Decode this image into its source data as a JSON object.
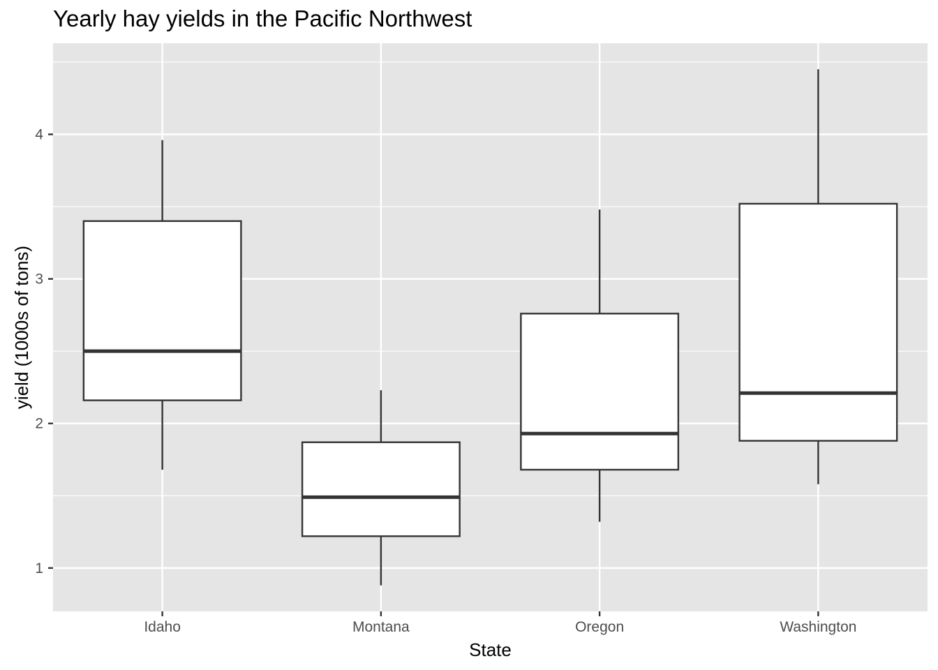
{
  "chart_data": {
    "type": "boxplot",
    "title": "Yearly hay yields in the Pacific Northwest",
    "xlabel": "State",
    "ylabel": "yield (1000s of tons)",
    "categories": [
      "Idaho",
      "Montana",
      "Oregon",
      "Washington"
    ],
    "boxes": [
      {
        "name": "Idaho",
        "lower_whisker": 1.68,
        "q1": 2.16,
        "median": 2.5,
        "q3": 3.4,
        "upper_whisker": 3.96
      },
      {
        "name": "Montana",
        "lower_whisker": 0.88,
        "q1": 1.22,
        "median": 1.49,
        "q3": 1.87,
        "upper_whisker": 2.23
      },
      {
        "name": "Oregon",
        "lower_whisker": 1.32,
        "q1": 1.68,
        "median": 1.93,
        "q3": 2.76,
        "upper_whisker": 3.48
      },
      {
        "name": "Washington",
        "lower_whisker": 1.58,
        "q1": 1.88,
        "median": 2.21,
        "q3": 3.52,
        "upper_whisker": 4.45
      }
    ],
    "yticks": [
      1,
      2,
      3,
      4
    ],
    "ylim": [
      0.7,
      4.63
    ],
    "grid": true,
    "colors": {
      "panel_background": "#e5e5e5",
      "grid": "#ffffff",
      "box_fill": "#ffffff",
      "box_outline": "#333333",
      "tick_text": "#4d4d4d",
      "text": "#000000"
    }
  }
}
